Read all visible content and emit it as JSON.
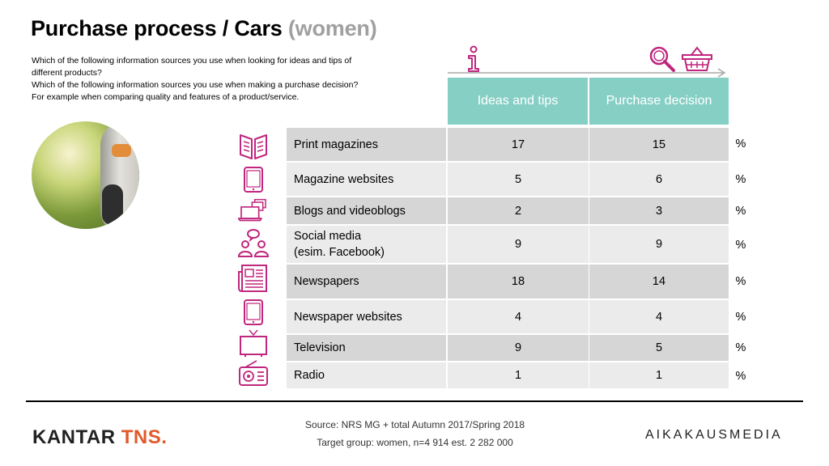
{
  "title": {
    "main": "Purchase process / Cars",
    "sub": "(women)"
  },
  "questions": [
    "Which of the following information sources you use when looking for ideas and tips of",
    "different products?",
    "Which of the following information sources you use when making a purchase decision?",
    "For example when comparing quality and features of a product/service."
  ],
  "chart_data": {
    "type": "table",
    "columns": [
      "Ideas and tips",
      "Purchase decision"
    ],
    "rows": [
      {
        "label": "Print magazines",
        "icon": "book-icon",
        "values": [
          17,
          15
        ],
        "unit": "%"
      },
      {
        "label": "Magazine websites",
        "icon": "tablet-icon",
        "values": [
          5,
          6
        ],
        "unit": "%"
      },
      {
        "label": "Blogs and videoblogs",
        "icon": "laptop-icon",
        "values": [
          2,
          3
        ],
        "unit": "%"
      },
      {
        "label_line1": "Social media",
        "label_line2": "(esim. Facebook)",
        "icon": "people-icon",
        "values": [
          9,
          9
        ],
        "unit": "%"
      },
      {
        "label": "Newspapers",
        "icon": "newspaper-icon",
        "values": [
          18,
          14
        ],
        "unit": "%"
      },
      {
        "label": "Newspaper websites",
        "icon": "tablet-icon",
        "values": [
          4,
          4
        ],
        "unit": "%"
      },
      {
        "label": "Television",
        "icon": "tv-icon",
        "values": [
          9,
          5
        ],
        "unit": "%"
      },
      {
        "label": "Radio",
        "icon": "radio-icon",
        "values": [
          1,
          1
        ],
        "unit": "%"
      }
    ]
  },
  "footer": {
    "source": "Source: NRS MG + total Autumn 2017/Spring 2018",
    "target": "Target group: women, n=4 914 est. 2 282 000",
    "logo_left_1": "KANTAR ",
    "logo_left_2": "TNS.",
    "logo_right": "AIKAKAUSMEDIA"
  },
  "colors": {
    "accent": "#c0267e",
    "header": "#86cfc5",
    "row_dark": "#d6d6d6",
    "row_light": "#ebebeb"
  }
}
